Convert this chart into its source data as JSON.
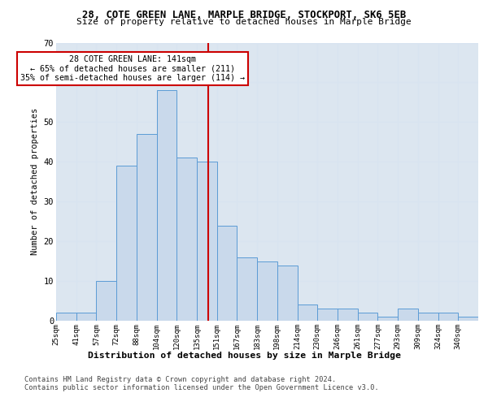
{
  "title": "28, COTE GREEN LANE, MARPLE BRIDGE, STOCKPORT, SK6 5EB",
  "subtitle": "Size of property relative to detached houses in Marple Bridge",
  "xlabel": "Distribution of detached houses by size in Marple Bridge",
  "ylabel": "Number of detached properties",
  "categories": [
    "25sqm",
    "41sqm",
    "57sqm",
    "72sqm",
    "88sqm",
    "104sqm",
    "120sqm",
    "135sqm",
    "151sqm",
    "167sqm",
    "183sqm",
    "198sqm",
    "214sqm",
    "230sqm",
    "246sqm",
    "261sqm",
    "277sqm",
    "293sqm",
    "309sqm",
    "324sqm",
    "340sqm"
  ],
  "values": [
    2,
    2,
    10,
    39,
    47,
    58,
    41,
    40,
    24,
    16,
    15,
    14,
    4,
    3,
    3,
    2,
    1,
    3,
    2,
    2,
    1
  ],
  "bar_color": "#c9d9eb",
  "bar_edge_color": "#5b9bd5",
  "vline_color": "#cc0000",
  "vline_x_index": 7.55,
  "annotation_text": "28 COTE GREEN LANE: 141sqm\n← 65% of detached houses are smaller (211)\n35% of semi-detached houses are larger (114) →",
  "annotation_box_facecolor": "#ffffff",
  "annotation_box_edgecolor": "#cc0000",
  "ylim": [
    0,
    70
  ],
  "yticks": [
    0,
    10,
    20,
    30,
    40,
    50,
    60,
    70
  ],
  "grid_color": "#d8e4f0",
  "bg_color": "#dce6f0",
  "footer_line1": "Contains HM Land Registry data © Crown copyright and database right 2024.",
  "footer_line2": "Contains public sector information licensed under the Open Government Licence v3.0.",
  "n_bins": 21
}
